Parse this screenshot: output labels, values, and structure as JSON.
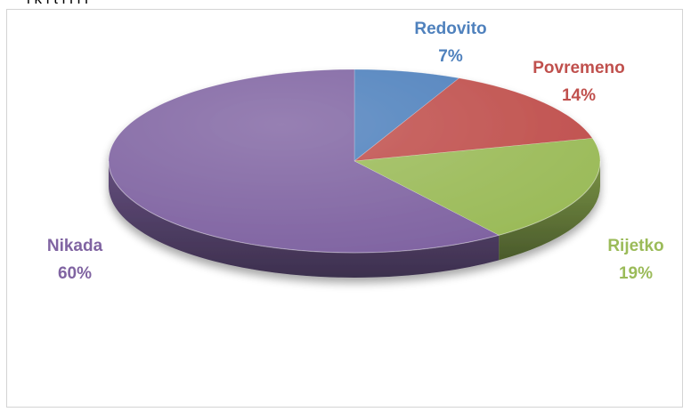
{
  "clipped_top_text": "i k i t   i i    i l",
  "chart_data": {
    "type": "pie",
    "style": "3d",
    "title": "",
    "categories": [
      "Redovito",
      "Povremeno",
      "Rijetko",
      "Nikada"
    ],
    "values": [
      7,
      14,
      19,
      60
    ],
    "value_labels": [
      "7%",
      "14%",
      "19%",
      "60%"
    ],
    "colors": [
      "#4f81bd",
      "#c0504d",
      "#9bbb59",
      "#8064a2"
    ],
    "legend": "none",
    "data_labels": "outside"
  }
}
